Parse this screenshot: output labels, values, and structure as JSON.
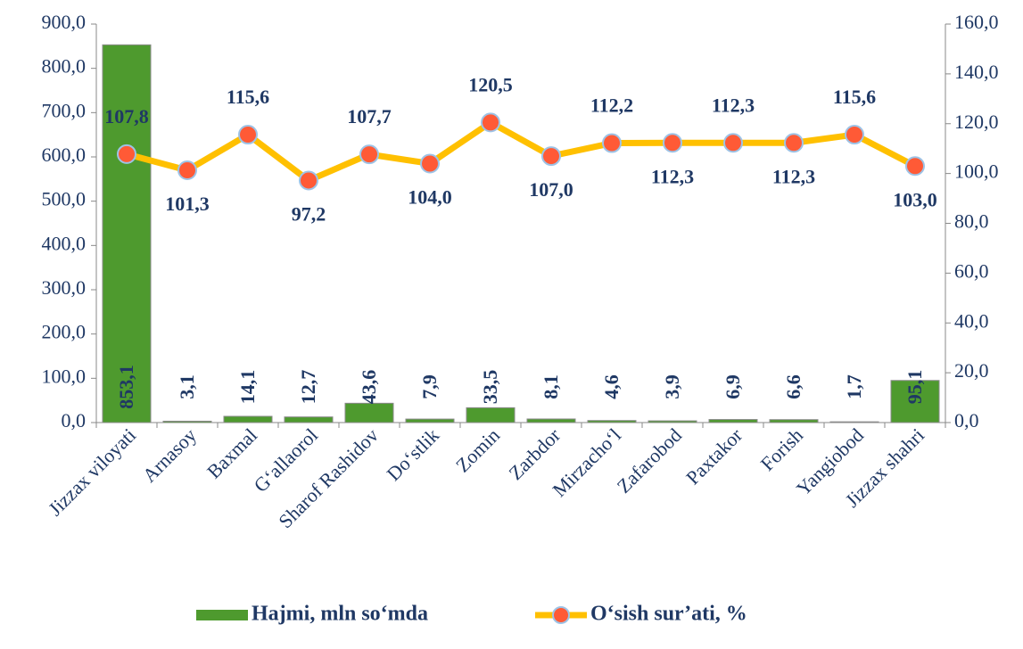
{
  "chart_data": {
    "type": "bar-line",
    "categories": [
      "Jizzax viloyati",
      "Arnasoy",
      "Baxmal",
      "G‘allaorol",
      "Sharof Rashidov",
      "Do‘stlik",
      "Zomin",
      "Zarbdor",
      "Mirzacho‘l",
      "Zafarobod",
      "Paxtakor",
      "Forish",
      "Yangiobod",
      "Jizzax shahri"
    ],
    "series": [
      {
        "name": "Hajmi, mln so‘mda",
        "color": "#4e9a2e",
        "type": "bar",
        "values": [
          853.1,
          3.1,
          14.1,
          12.7,
          43.6,
          7.9,
          33.5,
          8.1,
          4.6,
          3.9,
          6.9,
          6.6,
          1.7,
          95.1
        ],
        "value_labels": [
          "853,1",
          "3,1",
          "14,1",
          "12,7",
          "43,6",
          "7,9",
          "33,5",
          "8,1",
          "4,6",
          "3,9",
          "6,9",
          "6,6",
          "1,7",
          "95,1"
        ]
      },
      {
        "name": "O‘sish sur’ati, %",
        "color": "#ffc000",
        "marker_color": "#ff5a36",
        "type": "line",
        "axis": "y2",
        "values": [
          107.8,
          101.3,
          115.6,
          97.2,
          107.7,
          104.0,
          120.5,
          107.0,
          112.2,
          112.3,
          112.3,
          112.3,
          115.6,
          103.0
        ],
        "value_labels": [
          "107,8",
          "101,3",
          "115,6",
          "97,2",
          "107,7",
          "104,0",
          "120,5",
          "107,0",
          "112,2",
          "112,3",
          "112,3",
          "112,3",
          "115,6",
          "103,0"
        ]
      }
    ],
    "ylim": [
      0,
      900
    ],
    "yticks": [
      {
        "value": 0,
        "label": "0,0"
      },
      {
        "value": 100,
        "label": "100,0"
      },
      {
        "value": 200,
        "label": "200,0"
      },
      {
        "value": 300,
        "label": "300,0"
      },
      {
        "value": 400,
        "label": "400,0"
      },
      {
        "value": 500,
        "label": "500,0"
      },
      {
        "value": 600,
        "label": "600,0"
      },
      {
        "value": 700,
        "label": "700,0"
      },
      {
        "value": 800,
        "label": "800,0"
      },
      {
        "value": 900,
        "label": "900,0"
      }
    ],
    "y2lim": [
      0,
      160
    ],
    "y2ticks": [
      {
        "value": 0,
        "label": "0,0"
      },
      {
        "value": 20,
        "label": "20,0"
      },
      {
        "value": 40,
        "label": "40,0"
      },
      {
        "value": 60,
        "label": "60,0"
      },
      {
        "value": 80,
        "label": "80,0"
      },
      {
        "value": 100,
        "label": "100,0"
      },
      {
        "value": 120,
        "label": "120,0"
      },
      {
        "value": 140,
        "label": "140,0"
      },
      {
        "value": 160,
        "label": "160,0"
      }
    ],
    "legend": "bottom",
    "grid": false
  }
}
